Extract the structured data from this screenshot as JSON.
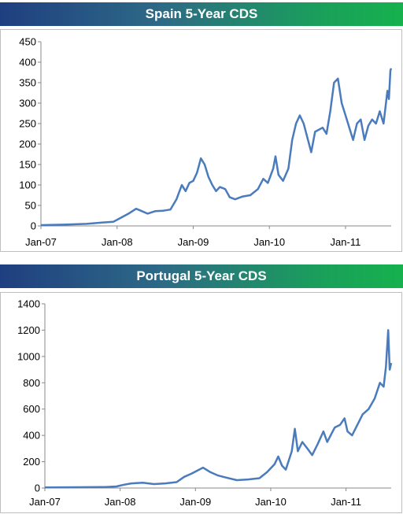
{
  "chart_data": [
    {
      "type": "line",
      "title": "Spain 5-Year CDS",
      "xlabel": "",
      "ylabel": "",
      "x_ticks": [
        "Jan-07",
        "Jan-08",
        "Jan-09",
        "Jan-10",
        "Jan-11"
      ],
      "y_ticks": [
        0,
        50,
        100,
        150,
        200,
        250,
        300,
        350,
        400,
        450
      ],
      "ylim": [
        0,
        450
      ],
      "xlim": [
        2007.0,
        2011.6
      ],
      "line_color": "#4a7bbd",
      "points": [
        [
          2007.0,
          2
        ],
        [
          2007.3,
          3
        ],
        [
          2007.6,
          5
        ],
        [
          2007.8,
          8
        ],
        [
          2007.95,
          10
        ],
        [
          2008.05,
          20
        ],
        [
          2008.15,
          30
        ],
        [
          2008.25,
          42
        ],
        [
          2008.3,
          38
        ],
        [
          2008.4,
          30
        ],
        [
          2008.5,
          36
        ],
        [
          2008.6,
          37
        ],
        [
          2008.7,
          40
        ],
        [
          2008.78,
          65
        ],
        [
          2008.85,
          100
        ],
        [
          2008.9,
          85
        ],
        [
          2008.95,
          105
        ],
        [
          2009.0,
          110
        ],
        [
          2009.05,
          130
        ],
        [
          2009.1,
          165
        ],
        [
          2009.15,
          150
        ],
        [
          2009.2,
          120
        ],
        [
          2009.25,
          100
        ],
        [
          2009.3,
          85
        ],
        [
          2009.35,
          95
        ],
        [
          2009.42,
          90
        ],
        [
          2009.48,
          70
        ],
        [
          2009.55,
          65
        ],
        [
          2009.65,
          72
        ],
        [
          2009.75,
          75
        ],
        [
          2009.85,
          90
        ],
        [
          2009.92,
          115
        ],
        [
          2009.98,
          105
        ],
        [
          2010.05,
          140
        ],
        [
          2010.08,
          170
        ],
        [
          2010.12,
          125
        ],
        [
          2010.18,
          110
        ],
        [
          2010.25,
          140
        ],
        [
          2010.3,
          210
        ],
        [
          2010.35,
          250
        ],
        [
          2010.4,
          270
        ],
        [
          2010.45,
          250
        ],
        [
          2010.5,
          215
        ],
        [
          2010.55,
          180
        ],
        [
          2010.6,
          230
        ],
        [
          2010.7,
          240
        ],
        [
          2010.75,
          225
        ],
        [
          2010.8,
          280
        ],
        [
          2010.85,
          350
        ],
        [
          2010.9,
          360
        ],
        [
          2010.95,
          300
        ],
        [
          2011.0,
          270
        ],
        [
          2011.05,
          240
        ],
        [
          2011.1,
          210
        ],
        [
          2011.15,
          250
        ],
        [
          2011.2,
          260
        ],
        [
          2011.25,
          210
        ],
        [
          2011.3,
          245
        ],
        [
          2011.35,
          260
        ],
        [
          2011.4,
          250
        ],
        [
          2011.45,
          280
        ],
        [
          2011.5,
          250
        ],
        [
          2011.55,
          330
        ],
        [
          2011.57,
          310
        ],
        [
          2011.59,
          380
        ],
        [
          2011.6,
          385
        ]
      ]
    },
    {
      "type": "line",
      "title": "Portugal 5-Year CDS",
      "xlabel": "",
      "ylabel": "",
      "x_ticks": [
        "Jan-07",
        "Jan-08",
        "Jan-09",
        "Jan-10",
        "Jan-11"
      ],
      "y_ticks": [
        0,
        200,
        400,
        600,
        800,
        1000,
        1200,
        1400
      ],
      "ylim": [
        0,
        1400
      ],
      "xlim": [
        2007.0,
        2011.6
      ],
      "line_color": "#4a7bbd",
      "points": [
        [
          2007.0,
          5
        ],
        [
          2007.4,
          6
        ],
        [
          2007.8,
          8
        ],
        [
          2007.95,
          12
        ],
        [
          2008.05,
          25
        ],
        [
          2008.15,
          35
        ],
        [
          2008.3,
          40
        ],
        [
          2008.45,
          30
        ],
        [
          2008.6,
          35
        ],
        [
          2008.75,
          45
        ],
        [
          2008.85,
          85
        ],
        [
          2008.95,
          110
        ],
        [
          2009.05,
          140
        ],
        [
          2009.1,
          155
        ],
        [
          2009.2,
          120
        ],
        [
          2009.3,
          95
        ],
        [
          2009.4,
          80
        ],
        [
          2009.55,
          60
        ],
        [
          2009.7,
          65
        ],
        [
          2009.85,
          75
        ],
        [
          2009.95,
          120
        ],
        [
          2010.05,
          180
        ],
        [
          2010.1,
          240
        ],
        [
          2010.15,
          170
        ],
        [
          2010.2,
          140
        ],
        [
          2010.28,
          280
        ],
        [
          2010.32,
          450
        ],
        [
          2010.36,
          280
        ],
        [
          2010.42,
          350
        ],
        [
          2010.5,
          290
        ],
        [
          2010.55,
          250
        ],
        [
          2010.62,
          330
        ],
        [
          2010.7,
          430
        ],
        [
          2010.75,
          350
        ],
        [
          2010.85,
          460
        ],
        [
          2010.92,
          480
        ],
        [
          2010.98,
          530
        ],
        [
          2011.02,
          430
        ],
        [
          2011.08,
          400
        ],
        [
          2011.15,
          480
        ],
        [
          2011.22,
          560
        ],
        [
          2011.3,
          600
        ],
        [
          2011.38,
          680
        ],
        [
          2011.45,
          800
        ],
        [
          2011.5,
          770
        ],
        [
          2011.53,
          920
        ],
        [
          2011.56,
          1200
        ],
        [
          2011.58,
          900
        ],
        [
          2011.6,
          950
        ]
      ]
    }
  ]
}
